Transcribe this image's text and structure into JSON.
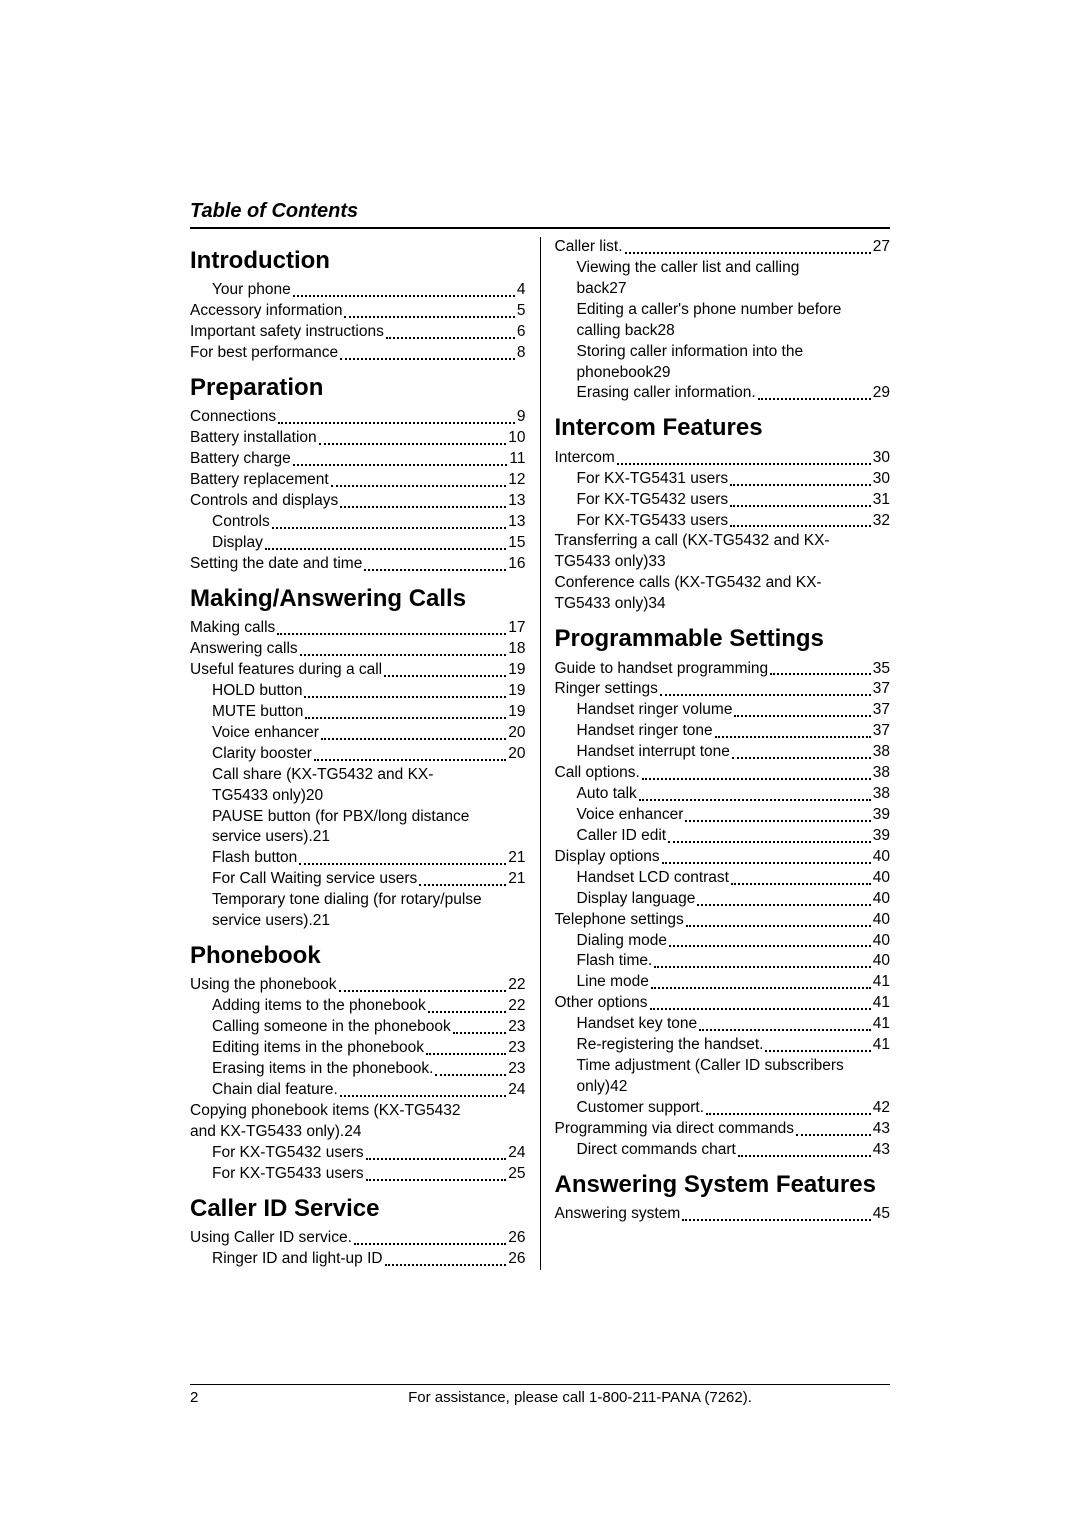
{
  "header": {
    "title": "Table of Contents"
  },
  "footer": {
    "page": "2",
    "text": "For assistance, please call 1-800-211-PANA (7262)."
  },
  "left": [
    {
      "type": "heading",
      "text": "Introduction"
    },
    {
      "type": "entry",
      "indent": true,
      "label": "Your phone",
      "page": "4"
    },
    {
      "type": "entry",
      "indent": false,
      "label": "Accessory information",
      "page": "5"
    },
    {
      "type": "entry",
      "indent": false,
      "label": "Important safety instructions",
      "page": "6"
    },
    {
      "type": "entry",
      "indent": false,
      "label": "For best performance",
      "page": "8"
    },
    {
      "type": "heading",
      "text": "Preparation"
    },
    {
      "type": "entry",
      "indent": false,
      "label": "Connections",
      "page": "9"
    },
    {
      "type": "entry",
      "indent": false,
      "label": "Battery installation",
      "page": "10"
    },
    {
      "type": "entry",
      "indent": false,
      "label": "Battery charge",
      "page": "11"
    },
    {
      "type": "entry",
      "indent": false,
      "label": "Battery replacement",
      "page": "12"
    },
    {
      "type": "entry",
      "indent": false,
      "label": "Controls and displays",
      "page": "13"
    },
    {
      "type": "entry",
      "indent": true,
      "label": "Controls",
      "page": "13"
    },
    {
      "type": "entry",
      "indent": true,
      "label": "Display",
      "page": "15"
    },
    {
      "type": "entry",
      "indent": false,
      "label": "Setting the date and time",
      "page": "16"
    },
    {
      "type": "heading",
      "text": "Making/Answering Calls"
    },
    {
      "type": "entry",
      "indent": false,
      "label": "Making calls",
      "page": "17"
    },
    {
      "type": "entry",
      "indent": false,
      "label": "Answering calls",
      "page": "18"
    },
    {
      "type": "entry",
      "indent": false,
      "label": "Useful features during a call",
      "page": "19"
    },
    {
      "type": "entry",
      "indent": true,
      "label": "HOLD button",
      "page": "19"
    },
    {
      "type": "entry",
      "indent": true,
      "label": "MUTE button",
      "page": "19"
    },
    {
      "type": "entry",
      "indent": true,
      "label": "Voice enhancer",
      "page": "20"
    },
    {
      "type": "entry",
      "indent": true,
      "label": "Clarity booster",
      "page": "20"
    },
    {
      "type": "multi",
      "indent": true,
      "pre": "Call share (KX-TG5432 and KX-",
      "last": "TG5433 only)",
      "page": "20"
    },
    {
      "type": "multi",
      "indent": true,
      "pre": "PAUSE button (for PBX/long distance",
      "last": "service users).",
      "page": "21"
    },
    {
      "type": "entry",
      "indent": true,
      "label": "Flash button",
      "page": "21"
    },
    {
      "type": "entry",
      "indent": true,
      "label": "For Call Waiting service users",
      "page": "21"
    },
    {
      "type": "multi",
      "indent": true,
      "pre": "Temporary tone dialing (for rotary/pulse",
      "last": "service users).",
      "page": "21"
    },
    {
      "type": "heading",
      "text": "Phonebook"
    },
    {
      "type": "entry",
      "indent": false,
      "label": "Using the phonebook",
      "page": "22"
    },
    {
      "type": "entry",
      "indent": true,
      "label": "Adding items to the phonebook",
      "page": "22"
    },
    {
      "type": "entry",
      "indent": true,
      "label": "Calling someone in the phonebook",
      "page": "23"
    },
    {
      "type": "entry",
      "indent": true,
      "label": "Editing items in the phonebook",
      "page": "23"
    },
    {
      "type": "entry",
      "indent": true,
      "label": "Erasing items in the phonebook.",
      "page": "23"
    },
    {
      "type": "entry",
      "indent": true,
      "label": "Chain dial feature.",
      "page": "24"
    },
    {
      "type": "multi",
      "indent": false,
      "pre": "Copying phonebook items (KX-TG5432",
      "last": "and KX-TG5433 only).",
      "page": "24"
    },
    {
      "type": "entry",
      "indent": true,
      "label": "For KX-TG5432 users",
      "page": "24"
    },
    {
      "type": "entry",
      "indent": true,
      "label": "For KX-TG5433 users",
      "page": "25"
    },
    {
      "type": "heading",
      "text": "Caller ID Service"
    },
    {
      "type": "entry",
      "indent": false,
      "label": "Using Caller ID service.",
      "page": "26"
    },
    {
      "type": "entry",
      "indent": true,
      "label": "Ringer ID and light-up ID",
      "page": "26"
    }
  ],
  "right": [
    {
      "type": "entry",
      "indent": false,
      "label": "Caller list.",
      "page": "27"
    },
    {
      "type": "multi",
      "indent": true,
      "pre": "Viewing the caller list and calling",
      "last": "back",
      "page": "27"
    },
    {
      "type": "multi",
      "indent": true,
      "pre": "Editing a caller's phone number before",
      "last": "calling back",
      "page": "28"
    },
    {
      "type": "multi",
      "indent": true,
      "pre": "Storing caller information into the",
      "last": "phonebook",
      "page": "29"
    },
    {
      "type": "entry",
      "indent": true,
      "label": "Erasing caller information.",
      "page": "29"
    },
    {
      "type": "heading",
      "text": "Intercom Features"
    },
    {
      "type": "entry",
      "indent": false,
      "label": "Intercom",
      "page": "30"
    },
    {
      "type": "entry",
      "indent": true,
      "label": "For KX-TG5431 users",
      "page": "30"
    },
    {
      "type": "entry",
      "indent": true,
      "label": "For KX-TG5432 users",
      "page": "31"
    },
    {
      "type": "entry",
      "indent": true,
      "label": "For KX-TG5433 users",
      "page": "32"
    },
    {
      "type": "multi",
      "indent": false,
      "pre": "Transferring a call (KX-TG5432 and KX-",
      "last": "TG5433 only)",
      "page": "33"
    },
    {
      "type": "multi",
      "indent": false,
      "pre": "Conference calls (KX-TG5432 and KX-",
      "last": "TG5433 only)",
      "page": "34"
    },
    {
      "type": "heading",
      "text": "Programmable Settings"
    },
    {
      "type": "entry",
      "indent": false,
      "label": "Guide to handset programming",
      "page": "35"
    },
    {
      "type": "entry",
      "indent": false,
      "label": "Ringer settings",
      "page": "37"
    },
    {
      "type": "entry",
      "indent": true,
      "label": "Handset ringer volume",
      "page": "37"
    },
    {
      "type": "entry",
      "indent": true,
      "label": "Handset ringer tone",
      "page": "37"
    },
    {
      "type": "entry",
      "indent": true,
      "label": "Handset interrupt tone",
      "page": "38"
    },
    {
      "type": "entry",
      "indent": false,
      "label": "Call options.",
      "page": "38"
    },
    {
      "type": "entry",
      "indent": true,
      "label": "Auto talk",
      "page": "38"
    },
    {
      "type": "entry",
      "indent": true,
      "label": "Voice enhancer",
      "page": "39"
    },
    {
      "type": "entry",
      "indent": true,
      "label": "Caller ID edit",
      "page": "39"
    },
    {
      "type": "entry",
      "indent": false,
      "label": "Display options",
      "page": "40"
    },
    {
      "type": "entry",
      "indent": true,
      "label": "Handset LCD contrast",
      "page": "40"
    },
    {
      "type": "entry",
      "indent": true,
      "label": "Display language",
      "page": "40"
    },
    {
      "type": "entry",
      "indent": false,
      "label": "Telephone settings",
      "page": "40"
    },
    {
      "type": "entry",
      "indent": true,
      "label": "Dialing mode",
      "page": "40"
    },
    {
      "type": "entry",
      "indent": true,
      "label": "Flash time.",
      "page": "40"
    },
    {
      "type": "entry",
      "indent": true,
      "label": "Line mode",
      "page": "41"
    },
    {
      "type": "entry",
      "indent": false,
      "label": "Other options",
      "page": "41"
    },
    {
      "type": "entry",
      "indent": true,
      "label": "Handset key tone",
      "page": "41"
    },
    {
      "type": "entry",
      "indent": true,
      "label": "Re-registering the handset.",
      "page": "41"
    },
    {
      "type": "multi",
      "indent": true,
      "pre": "Time adjustment (Caller ID subscribers",
      "last": "only)",
      "page": "42"
    },
    {
      "type": "entry",
      "indent": true,
      "label": "Customer support.",
      "page": "42"
    },
    {
      "type": "entry",
      "indent": false,
      "label": "Programming via direct commands",
      "page": "43"
    },
    {
      "type": "entry",
      "indent": true,
      "label": "Direct commands chart",
      "page": "43"
    },
    {
      "type": "heading",
      "text": "Answering System Features"
    },
    {
      "type": "entry",
      "indent": false,
      "label": "Answering system",
      "page": "45"
    }
  ]
}
